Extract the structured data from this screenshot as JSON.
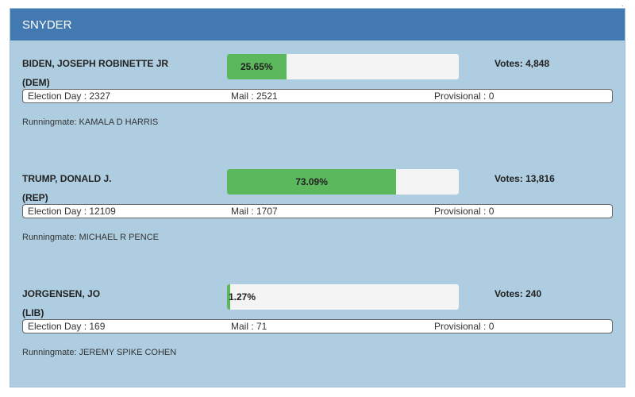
{
  "header": {
    "title": "SNYDER"
  },
  "candidates": [
    {
      "name": "BIDEN, JOSEPH ROBINETTE JR",
      "party": "(DEM)",
      "percent": 25.65,
      "percent_label": "25.65%",
      "votes_label": "Votes: 4,848",
      "election_day": "Election Day : 2327",
      "mail": "Mail : 2521",
      "provisional": "Provisional : 0",
      "runningmate": "Runningmate: KAMALA D HARRIS"
    },
    {
      "name": "TRUMP, DONALD J.",
      "party": "(REP)",
      "percent": 73.09,
      "percent_label": "73.09%",
      "votes_label": "Votes: 13,816",
      "election_day": "Election Day : 12109",
      "mail": "Mail : 1707",
      "provisional": "Provisional : 0",
      "runningmate": "Runningmate: MICHAEL R PENCE"
    },
    {
      "name": "JORGENSEN, JO",
      "party": "(LIB)",
      "percent": 1.27,
      "percent_label": "1.27%",
      "votes_label": "Votes: 240",
      "election_day": "Election Day : 169",
      "mail": "Mail : 71",
      "provisional": "Provisional : 0",
      "runningmate": "Runningmate: JEREMY SPIKE COHEN"
    }
  ],
  "colors": {
    "header": "#4279b0",
    "panel": "#aecde0",
    "bar_fill": "#5cb85c",
    "bar_track": "#f4f4f4"
  }
}
